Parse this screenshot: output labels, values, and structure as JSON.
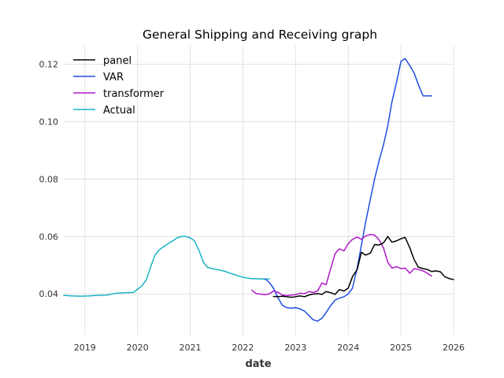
{
  "chart_data": {
    "type": "line",
    "title": "General Shipping and Receiving graph",
    "xlabel": "date",
    "ylabel": "",
    "xlim": [
      2018.6,
      2026.0
    ],
    "ylim": [
      0.0255,
      0.1265
    ],
    "x_ticks": [
      2019,
      2020,
      2021,
      2022,
      2023,
      2024,
      2025,
      2026
    ],
    "x_tick_labels": [
      "2019",
      "2020",
      "2021",
      "2022",
      "2023",
      "2024",
      "2025",
      "2026"
    ],
    "y_ticks": [
      0.04,
      0.06,
      0.08,
      0.1,
      0.12
    ],
    "y_tick_labels": [
      "0.04",
      "0.06",
      "0.08",
      "0.10",
      "0.12"
    ],
    "grid": true,
    "legend_position": "top-left",
    "series": [
      {
        "name": "panel",
        "color": "#000000",
        "x": [
          2022.58,
          2022.67,
          2022.75,
          2022.83,
          2022.92,
          2023.0,
          2023.08,
          2023.17,
          2023.25,
          2023.33,
          2023.42,
          2023.5,
          2023.58,
          2023.67,
          2023.75,
          2023.83,
          2023.92,
          2024.0,
          2024.08,
          2024.17,
          2024.25,
          2024.33,
          2024.42,
          2024.5,
          2024.58,
          2024.67,
          2024.75,
          2024.83,
          2024.92,
          2025.0,
          2025.08,
          2025.17,
          2025.25,
          2025.33,
          2025.42,
          2025.5,
          2025.58,
          2025.67,
          2025.75,
          2025.83,
          2025.92,
          2026.0
        ],
        "values": [
          0.0391,
          0.039,
          0.0392,
          0.039,
          0.0388,
          0.039,
          0.0393,
          0.039,
          0.0396,
          0.0399,
          0.0401,
          0.0398,
          0.0408,
          0.0404,
          0.0398,
          0.0415,
          0.041,
          0.042,
          0.046,
          0.0485,
          0.0545,
          0.0535,
          0.0542,
          0.0572,
          0.057,
          0.0578,
          0.06,
          0.058,
          0.0585,
          0.0592,
          0.0597,
          0.056,
          0.052,
          0.0493,
          0.0488,
          0.0485,
          0.0478,
          0.048,
          0.0477,
          0.046,
          0.0453,
          0.045
        ]
      },
      {
        "name": "VAR",
        "color": "#1f4fe0",
        "x": [
          2022.42,
          2022.5,
          2022.58,
          2022.67,
          2022.75,
          2022.83,
          2022.92,
          2023.0,
          2023.08,
          2023.17,
          2023.25,
          2023.33,
          2023.42,
          2023.5,
          2023.58,
          2023.67,
          2023.75,
          2023.83,
          2023.92,
          2024.0,
          2024.08,
          2024.17,
          2024.25,
          2024.33,
          2024.42,
          2024.5,
          2024.58,
          2024.67,
          2024.75,
          2024.83,
          2024.92,
          2025.0,
          2025.08,
          2025.17,
          2025.25,
          2025.33,
          2025.42,
          2025.5,
          2025.58
        ],
        "values": [
          0.0452,
          0.044,
          0.042,
          0.0385,
          0.036,
          0.0352,
          0.035,
          0.0352,
          0.0348,
          0.034,
          0.0325,
          0.031,
          0.0305,
          0.0315,
          0.0335,
          0.036,
          0.0378,
          0.0385,
          0.039,
          0.04,
          0.042,
          0.049,
          0.057,
          0.065,
          0.073,
          0.08,
          0.086,
          0.092,
          0.0985,
          0.107,
          0.114,
          0.121,
          0.122,
          0.1195,
          0.117,
          0.113,
          0.109,
          0.109,
          0.109
        ]
      },
      {
        "name": "transformer",
        "color": "#b019c8",
        "x": [
          2022.17,
          2022.25,
          2022.33,
          2022.42,
          2022.5,
          2022.58,
          2022.67,
          2022.75,
          2022.83,
          2022.92,
          2023.0,
          2023.08,
          2023.17,
          2023.25,
          2023.33,
          2023.42,
          2023.5,
          2023.58,
          2023.67,
          2023.75,
          2023.83,
          2023.92,
          2024.0,
          2024.08,
          2024.17,
          2024.25,
          2024.33,
          2024.42,
          2024.5,
          2024.58,
          2024.67,
          2024.75,
          2024.83,
          2024.92,
          2025.0,
          2025.08,
          2025.17,
          2025.25,
          2025.33,
          2025.42,
          2025.5,
          2025.58
        ],
        "values": [
          0.0413,
          0.0401,
          0.0399,
          0.0397,
          0.04,
          0.041,
          0.0405,
          0.0396,
          0.0394,
          0.0396,
          0.0397,
          0.0402,
          0.0401,
          0.0408,
          0.0405,
          0.041,
          0.0438,
          0.0432,
          0.049,
          0.054,
          0.0557,
          0.055,
          0.0575,
          0.059,
          0.0598,
          0.059,
          0.0602,
          0.0607,
          0.0605,
          0.059,
          0.056,
          0.051,
          0.049,
          0.0495,
          0.0488,
          0.049,
          0.0472,
          0.0488,
          0.0485,
          0.048,
          0.0472,
          0.0462
        ]
      },
      {
        "name": "Actual",
        "color": "#17b3c3",
        "x": [
          2018.6,
          2018.75,
          2018.92,
          2019.08,
          2019.25,
          2019.42,
          2019.58,
          2019.75,
          2019.92,
          2020.08,
          2020.17,
          2020.25,
          2020.33,
          2020.42,
          2020.5,
          2020.58,
          2020.67,
          2020.75,
          2020.83,
          2020.92,
          2021.0,
          2021.08,
          2021.17,
          2021.25,
          2021.33,
          2021.42,
          2021.5,
          2021.58,
          2021.67,
          2021.75,
          2021.83,
          2021.92,
          2022.0,
          2022.08,
          2022.17,
          2022.25,
          2022.33,
          2022.42,
          2022.5
        ],
        "values": [
          0.0395,
          0.0393,
          0.0392,
          0.0393,
          0.0395,
          0.0396,
          0.0402,
          0.0404,
          0.0405,
          0.0427,
          0.045,
          0.0495,
          0.0535,
          0.0555,
          0.0565,
          0.0575,
          0.0585,
          0.0595,
          0.06,
          0.06,
          0.0595,
          0.0585,
          0.055,
          0.051,
          0.0492,
          0.0488,
          0.0485,
          0.0482,
          0.0478,
          0.0472,
          0.0468,
          0.0462,
          0.0458,
          0.0455,
          0.0453,
          0.0453,
          0.0452,
          0.0452,
          0.0452
        ]
      }
    ]
  }
}
